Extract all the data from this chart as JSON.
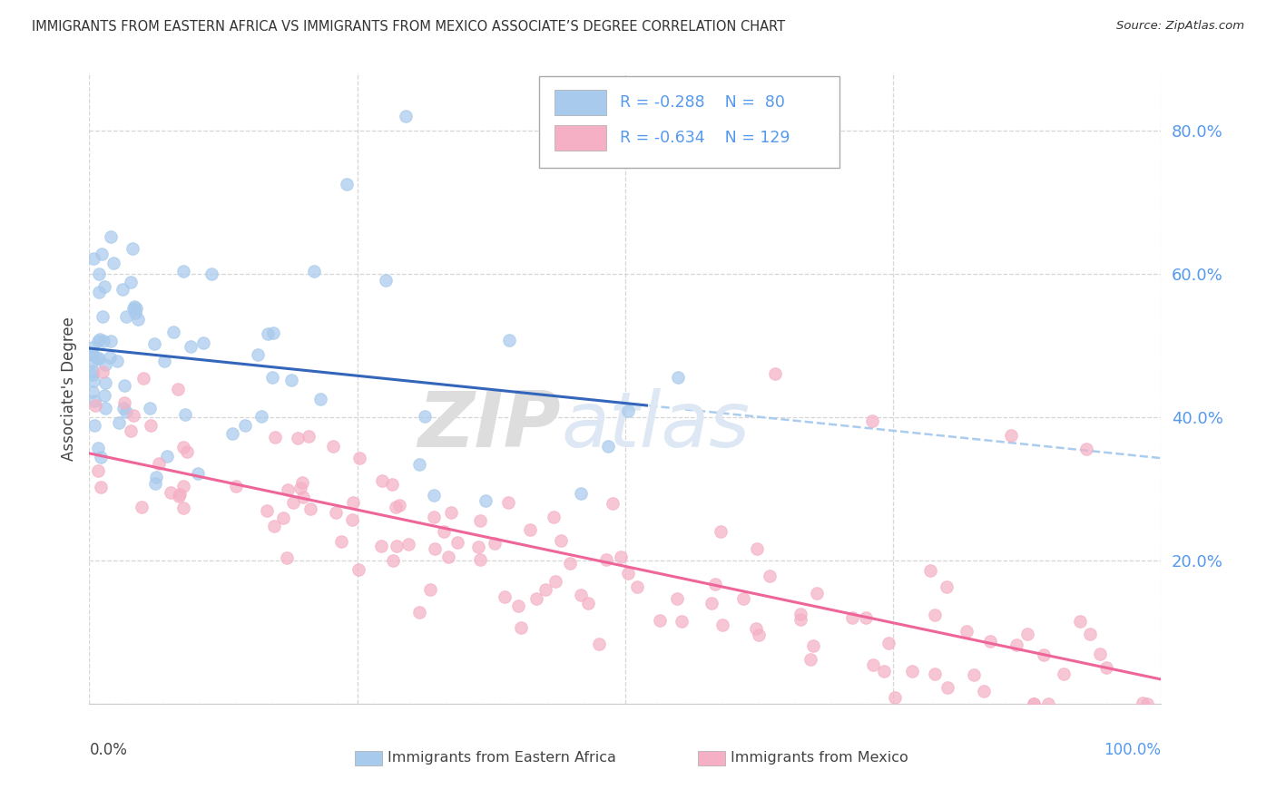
{
  "title": "IMMIGRANTS FROM EASTERN AFRICA VS IMMIGRANTS FROM MEXICO ASSOCIATE’S DEGREE CORRELATION CHART",
  "source": "Source: ZipAtlas.com",
  "ylabel": "Associate's Degree",
  "legend_blue_R": -0.288,
  "legend_blue_N": 80,
  "legend_pink_R": -0.634,
  "legend_pink_N": 129,
  "blue_color": "#A8CAEC",
  "pink_color": "#F5B0C5",
  "blue_line_color": "#3366BB",
  "pink_line_color": "#EE6699",
  "dash_color": "#AACCEE",
  "watermark_color": "#DDE8F4",
  "grid_color": "#CCCCCC",
  "title_color": "#333333",
  "tick_color": "#5599EE",
  "label_color": "#555555",
  "xlim": [
    0.0,
    1.0
  ],
  "ylim": [
    0.0,
    0.88
  ],
  "yticks": [
    0.0,
    0.2,
    0.4,
    0.6,
    0.8
  ],
  "ytick_labels": [
    "",
    "20.0%",
    "40.0%",
    "60.0%",
    "80.0%"
  ]
}
